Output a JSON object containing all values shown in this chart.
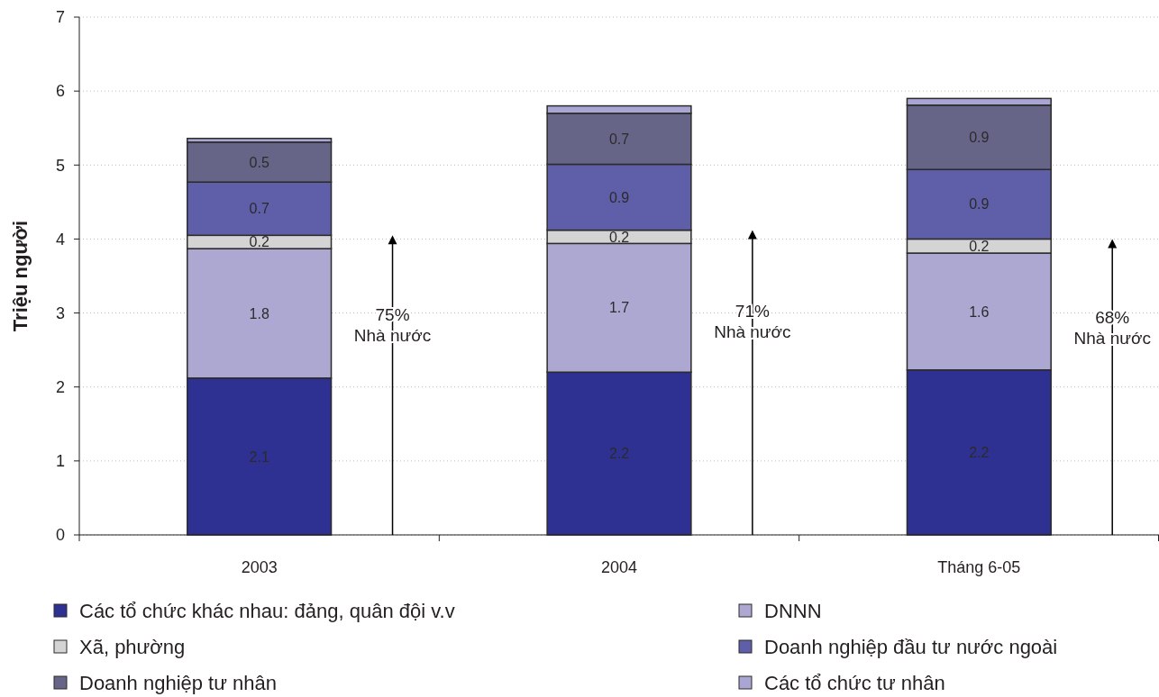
{
  "chart_data": {
    "type": "bar",
    "stacked": true,
    "ylabel": "Triệu người",
    "categories": [
      "2003",
      "2004",
      "Tháng 6-05"
    ],
    "series": [
      {
        "name": "Các tổ chức khác nhau: đảng, quân đội v.v",
        "color": "#2e3192",
        "values": [
          2.12,
          2.2,
          2.23
        ],
        "value_labels": [
          "2.1",
          "2.2",
          "2.2"
        ]
      },
      {
        "name": "DNNN",
        "color": "#aca8d2",
        "values": [
          1.75,
          1.74,
          1.58
        ],
        "value_labels": [
          "1.8",
          "1.7",
          "1.6"
        ]
      },
      {
        "name": "Xã, phường",
        "color": "#d4d4d4",
        "values": [
          0.18,
          0.18,
          0.19
        ],
        "value_labels": [
          "0.2",
          "0.2",
          "0.2"
        ]
      },
      {
        "name": "Doanh nghiệp đầu tư nước ngoài",
        "color": "#5f5ea8",
        "values": [
          0.72,
          0.89,
          0.94
        ],
        "value_labels": [
          "0.7",
          "0.9",
          "0.9"
        ]
      },
      {
        "name": "Doanh nghiệp tư nhân",
        "color": "#676587",
        "values": [
          0.54,
          0.69,
          0.87
        ],
        "value_labels": [
          "0.5",
          "0.7",
          "0.9"
        ]
      },
      {
        "name": "Các tổ chức tư nhân",
        "color": "#aaa6d4",
        "values": [
          0.05,
          0.1,
          0.09
        ],
        "value_labels": [
          null,
          null,
          null
        ]
      }
    ],
    "ylim": [
      0,
      7
    ],
    "yticks": [
      0,
      1,
      2,
      3,
      4,
      5,
      6,
      7
    ],
    "grid": "y",
    "legend": "bottom",
    "annotations": [
      "75%\nNhà nước",
      "71%\nNhà nước",
      "68%\nNhà nước"
    ]
  }
}
